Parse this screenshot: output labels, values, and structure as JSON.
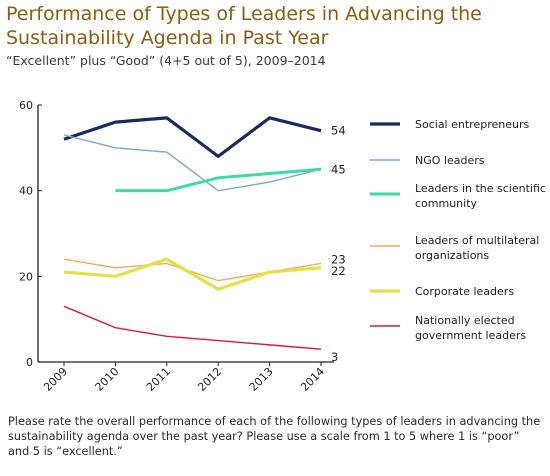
{
  "header": {
    "title_line1": "Performance of Types of Leaders in Advancing the",
    "title_line2": "Sustainability Agenda in Past Year",
    "subtitle": "“Excellent” plus “Good” (4+5 out of 5), 2009–2014"
  },
  "footnote": "Please rate the overall performance of each of the following types of leaders in advancing the sustainability agenda over the past year? Please use a scale from 1 to 5 where 1 is “poor” and 5 is “excellent.”",
  "chart_data": {
    "type": "line",
    "title": "Performance of Types of Leaders in Advancing the Sustainability Agenda in Past Year",
    "subtitle": "“Excellent” plus “Good” (4+5 out of 5), 2009–2014",
    "x": [
      "2009",
      "2010",
      "2011",
      "2012",
      "2013",
      "2014"
    ],
    "ylim": [
      0,
      60
    ],
    "yticks": [
      "0",
      "20",
      "40",
      "60"
    ],
    "legend_position": "right",
    "grid": false,
    "series": [
      {
        "name": "Social entrepreneurs",
        "color": "#1b2a5e",
        "width": 3.2,
        "values": [
          52,
          56,
          57,
          48,
          57,
          54
        ],
        "end_label": "54"
      },
      {
        "name": "NGO leaders",
        "color": "#7fa6d3",
        "width": 1.4,
        "values": [
          53,
          50,
          49,
          40,
          42,
          45
        ],
        "end_label": ""
      },
      {
        "name": "Leaders in the scientific community",
        "legend_lines": [
          "Leaders in the scientific",
          "community"
        ],
        "color": "#3ed9a4",
        "width": 3.0,
        "values": [
          null,
          40,
          40,
          43,
          44,
          45
        ],
        "end_label": "45"
      },
      {
        "name": "Leaders of multilateral organizations",
        "legend_lines": [
          "Leaders of multilateral",
          "organizations"
        ],
        "color": "#f3a862",
        "width": 1.4,
        "values": [
          24,
          22,
          23,
          19,
          21,
          23
        ],
        "end_label": "23"
      },
      {
        "name": "Corporate leaders",
        "color": "#e3e14a",
        "width": 3.2,
        "values": [
          21,
          20,
          24,
          17,
          21,
          22
        ],
        "end_label": "22"
      },
      {
        "name": "Nationally elected government leaders",
        "legend_lines": [
          "Nationally elected",
          "government leaders"
        ],
        "color": "#cf1f35",
        "width": 1.4,
        "values": [
          13,
          8,
          6,
          5,
          4,
          3
        ],
        "end_label": "3"
      }
    ]
  }
}
